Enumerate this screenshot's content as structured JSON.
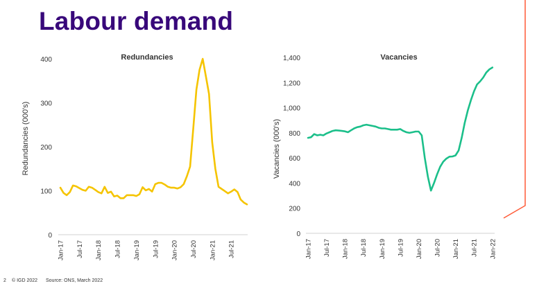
{
  "title": "Labour demand",
  "footer": {
    "page": "2",
    "copyright": "© IGD 2022",
    "source": "Source: ONS, March 2022"
  },
  "colors": {
    "title": "#38087a",
    "redundancies": "#f5c400",
    "vacancies": "#1bbf8a",
    "accent_line": "#ff5a36",
    "axis": "#d0d0d0"
  },
  "chart_data": [
    {
      "type": "line",
      "title": "Redundancies",
      "xlabel": "",
      "ylabel": "Redundancies (000's)",
      "ylim": [
        0,
        400
      ],
      "yticks": [
        "0",
        "100",
        "200",
        "300",
        "400"
      ],
      "ytick_values": [
        0,
        100,
        200,
        300,
        400
      ],
      "xticks": [
        "Jan-17",
        "Jul-17",
        "Jan-18",
        "Jul-18",
        "Jan-19",
        "Jul-19",
        "Jan-20",
        "Jul-20",
        "Jan-21",
        "Jul-21"
      ],
      "x_start": "Jan-17",
      "x_step": "month",
      "series": [
        {
          "name": "Redundancies",
          "values": [
            107,
            95,
            90,
            97,
            112,
            110,
            106,
            102,
            100,
            109,
            107,
            102,
            97,
            94,
            109,
            95,
            98,
            87,
            89,
            83,
            83,
            90,
            90,
            90,
            88,
            92,
            108,
            101,
            104,
            98,
            115,
            118,
            118,
            114,
            109,
            107,
            107,
            105,
            108,
            115,
            133,
            155,
            240,
            330,
            375,
            400,
            360,
            320,
            210,
            150,
            109,
            104,
            99,
            94,
            98,
            103,
            97,
            80,
            73,
            69
          ]
        }
      ]
    },
    {
      "type": "line",
      "title": "Vacancies",
      "xlabel": "",
      "ylabel": "Vacancies (000's)",
      "ylim": [
        0,
        1400
      ],
      "yticks": [
        "0",
        "200",
        "400",
        "600",
        "800",
        "1,000",
        "1,200",
        "1,400"
      ],
      "ytick_values": [
        0,
        200,
        400,
        600,
        800,
        1000,
        1200,
        1400
      ],
      "xticks": [
        "Jan-17",
        "Jul-17",
        "Jan-18",
        "Jul-18",
        "Jan-19",
        "Jul-19",
        "Jan-20",
        "Jul-20",
        "Jan-21",
        "Jul-21",
        "Jan-22"
      ],
      "x_start": "Jan-17",
      "x_step": "month",
      "series": [
        {
          "name": "Vacancies",
          "values": [
            760,
            765,
            790,
            780,
            785,
            780,
            795,
            805,
            815,
            820,
            818,
            815,
            812,
            805,
            820,
            835,
            845,
            850,
            860,
            865,
            860,
            855,
            850,
            840,
            835,
            835,
            830,
            825,
            825,
            825,
            830,
            815,
            805,
            800,
            805,
            810,
            810,
            780,
            600,
            450,
            340,
            400,
            470,
            530,
            570,
            595,
            610,
            612,
            620,
            660,
            760,
            880,
            980,
            1060,
            1130,
            1185,
            1210,
            1240,
            1280,
            1305,
            1320
          ]
        }
      ]
    }
  ]
}
